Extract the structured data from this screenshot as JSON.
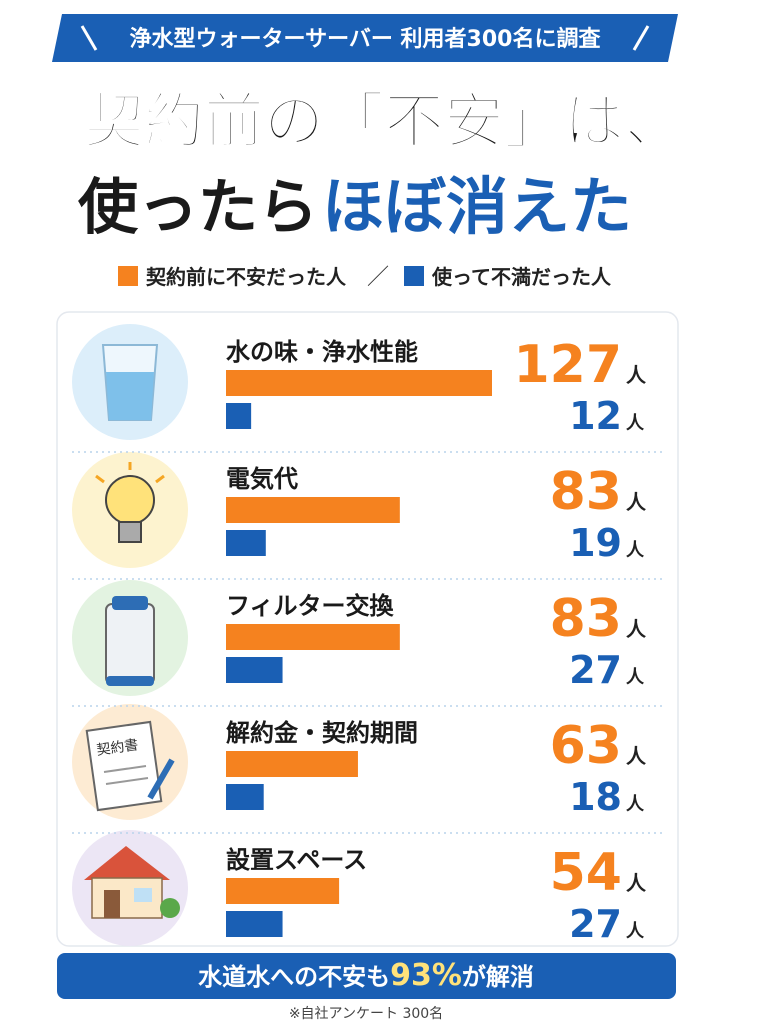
{
  "chart_data": {
    "type": "bar",
    "header": "浄水型ウォーターサーバー 利用者300名に調査",
    "title_line1": "契約前の「不安」は、",
    "title_line2": "使ったら",
    "title_highlight": "ほぼ消えた",
    "categories": [
      "水の味・浄水性能",
      "電気代",
      "フィルター交換",
      "解約金・契約期間",
      "設置スペース"
    ],
    "series": [
      {
        "name": "契約前に不安だった人",
        "color": "#f5821f",
        "values": [
          127,
          83,
          83,
          63,
          54
        ]
      },
      {
        "name": "使って不満だった人",
        "color": "#1a5fb4",
        "values": [
          12,
          19,
          27,
          18,
          27
        ]
      }
    ],
    "unit": "人",
    "icon_text": "契約書",
    "footer_prefix": "水道水への不安も",
    "footer_value": "93%",
    "footer_suffix": "が解消",
    "note": "※自社アンケート 300名"
  }
}
